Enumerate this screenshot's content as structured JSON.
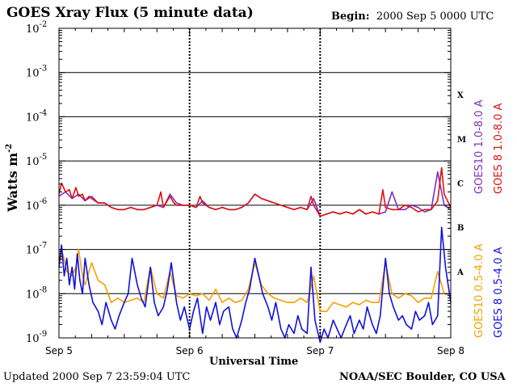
{
  "header": {
    "title": "GOES Xray Flux (5 minute data)",
    "begin_label": "Begin:",
    "begin_value": "2000 Sep 5 0000 UTC"
  },
  "footer": {
    "updated": "Updated 2000 Sep  7 23:59:04 UTC",
    "org": "NOAA/SEC Boulder, CO USA"
  },
  "chart_data": {
    "type": "line",
    "title": "GOES Xray Flux (5 minute data)",
    "xlabel": "Universal Time",
    "ylabel": "Watts m",
    "ylabel_sup": "-2",
    "yscale": "log",
    "ylim_exp": [
      -9,
      -2
    ],
    "y_ticks": [
      {
        "base": "10",
        "exp": "-2",
        "value": 0.01
      },
      {
        "base": "10",
        "exp": "-3",
        "value": 0.001
      },
      {
        "base": "10",
        "exp": "-4",
        "value": 0.0001
      },
      {
        "base": "10",
        "exp": "-5",
        "value": 1e-05
      },
      {
        "base": "10",
        "exp": "-6",
        "value": 1e-06
      },
      {
        "base": "10",
        "exp": "-7",
        "value": 1e-07
      },
      {
        "base": "10",
        "exp": "-8",
        "value": 1e-08
      },
      {
        "base": "10",
        "exp": "-9",
        "value": 1e-09
      }
    ],
    "xlim_days": [
      0,
      3
    ],
    "x_ticks": [
      {
        "label": "Sep 5",
        "day": 0
      },
      {
        "label": "Sep 6",
        "day": 1
      },
      {
        "label": "Sep 7",
        "day": 2
      },
      {
        "label": "Sep 8",
        "day": 3
      }
    ],
    "flare_classes": [
      {
        "label": "X",
        "exp": -3.5
      },
      {
        "label": "M",
        "exp": -4.5
      },
      {
        "label": "C",
        "exp": -5.5
      },
      {
        "label": "B",
        "exp": -6.5
      },
      {
        "label": "A",
        "exp": -7.5
      }
    ],
    "grid": true,
    "legend_position": "right",
    "colors": {
      "goes10_long": "#7b2fbf",
      "goes8_long": "#dd1111",
      "goes10_short": "#f5a000",
      "goes8_short": "#1111dd"
    },
    "series": [
      {
        "name": "GOES10 1.0-8.0 A",
        "color": "#7b2fbf",
        "x": [
          0,
          0.05,
          0.1,
          0.15,
          0.2,
          0.25,
          0.3,
          0.35,
          0.4,
          0.45,
          0.5,
          0.55,
          0.6,
          0.65,
          0.7,
          0.75,
          0.8,
          0.85,
          0.9,
          0.95,
          1.0,
          1.05,
          1.1,
          1.15,
          1.2,
          1.25,
          1.3,
          1.35,
          1.4,
          1.45,
          1.5,
          1.55,
          1.6,
          1.65,
          1.7,
          1.75,
          1.8,
          1.85,
          1.9,
          1.95,
          2.0,
          2.05,
          2.1,
          2.15,
          2.2,
          2.25,
          2.3,
          2.35,
          2.4,
          2.45,
          2.5,
          2.55,
          2.6,
          2.65,
          2.7,
          2.75,
          2.8,
          2.85,
          2.9,
          2.95,
          3.0
        ],
        "log_y": [
          -5.8,
          -5.7,
          -5.85,
          -5.75,
          -5.9,
          -5.8,
          -5.95,
          -5.95,
          -6.05,
          -6.1,
          -6.1,
          -6.05,
          -6.1,
          -6.1,
          -6.05,
          -6.0,
          -6.05,
          -5.75,
          -5.95,
          -6.0,
          -6.0,
          -6.05,
          -5.9,
          -6.05,
          -6.1,
          -6.05,
          -6.1,
          -6.1,
          -6.05,
          -5.95,
          -5.75,
          -5.85,
          -5.9,
          -5.95,
          -6.0,
          -6.05,
          -6.1,
          -6.05,
          -6.1,
          -5.85,
          -6.25,
          -6.2,
          -6.15,
          -6.2,
          -6.15,
          -6.2,
          -6.1,
          -6.2,
          -6.15,
          -6.2,
          -6.15,
          -5.7,
          -6.1,
          -6.1,
          -6.0,
          -6.05,
          -6.15,
          -6.1,
          -5.25,
          -6.0,
          -6.1
        ]
      },
      {
        "name": "GOES 8 1.0-8.0 A",
        "color": "#dd1111",
        "x": [
          0,
          0.02,
          0.05,
          0.08,
          0.1,
          0.13,
          0.15,
          0.18,
          0.2,
          0.23,
          0.25,
          0.3,
          0.35,
          0.4,
          0.45,
          0.5,
          0.55,
          0.6,
          0.65,
          0.7,
          0.75,
          0.78,
          0.8,
          0.85,
          0.88,
          0.9,
          0.95,
          1.0,
          1.05,
          1.08,
          1.1,
          1.15,
          1.2,
          1.25,
          1.3,
          1.35,
          1.4,
          1.45,
          1.5,
          1.55,
          1.6,
          1.65,
          1.7,
          1.75,
          1.8,
          1.85,
          1.9,
          1.93,
          1.95,
          2.0,
          2.05,
          2.1,
          2.15,
          2.2,
          2.25,
          2.3,
          2.35,
          2.4,
          2.45,
          2.48,
          2.5,
          2.55,
          2.6,
          2.65,
          2.7,
          2.75,
          2.8,
          2.85,
          2.9,
          2.93,
          2.95,
          3.0
        ],
        "log_y": [
          -5.75,
          -5.5,
          -5.7,
          -5.65,
          -5.85,
          -5.6,
          -5.8,
          -5.75,
          -5.9,
          -5.8,
          -5.85,
          -5.95,
          -5.95,
          -6.05,
          -6.1,
          -6.1,
          -6.05,
          -6.1,
          -6.1,
          -6.05,
          -6.0,
          -5.7,
          -6.05,
          -5.8,
          -5.95,
          -6.0,
          -6.0,
          -6.0,
          -6.05,
          -5.8,
          -5.95,
          -6.05,
          -6.1,
          -6.05,
          -6.1,
          -6.1,
          -6.05,
          -5.95,
          -5.75,
          -5.85,
          -5.9,
          -5.95,
          -6.0,
          -6.05,
          -6.1,
          -6.05,
          -6.1,
          -5.8,
          -6.0,
          -6.25,
          -6.2,
          -6.15,
          -6.2,
          -6.15,
          -6.2,
          -6.1,
          -6.2,
          -6.15,
          -6.2,
          -5.65,
          -6.05,
          -6.1,
          -6.1,
          -6.0,
          -6.05,
          -6.15,
          -6.1,
          -6.1,
          -5.9,
          -5.15,
          -5.75,
          -6.05
        ]
      },
      {
        "name": "GOES10 0.5-4.0 A",
        "color": "#f5a000",
        "x": [
          0,
          0.03,
          0.06,
          0.1,
          0.13,
          0.15,
          0.18,
          0.2,
          0.25,
          0.3,
          0.35,
          0.4,
          0.45,
          0.5,
          0.55,
          0.6,
          0.65,
          0.7,
          0.75,
          0.8,
          0.85,
          0.9,
          0.95,
          1.0,
          1.05,
          1.1,
          1.15,
          1.2,
          1.25,
          1.3,
          1.35,
          1.4,
          1.45,
          1.5,
          1.55,
          1.6,
          1.65,
          1.7,
          1.75,
          1.8,
          1.85,
          1.9,
          1.95,
          2.0,
          2.05,
          2.1,
          2.15,
          2.2,
          2.25,
          2.3,
          2.35,
          2.4,
          2.45,
          2.5,
          2.55,
          2.6,
          2.65,
          2.7,
          2.75,
          2.8,
          2.85,
          2.9,
          2.95,
          3.0
        ],
        "log_y": [
          -7.3,
          -7.1,
          -7.5,
          -7.6,
          -7.4,
          -7.0,
          -7.6,
          -7.8,
          -7.3,
          -7.7,
          -7.8,
          -8.2,
          -8.1,
          -8.2,
          -8.15,
          -8.1,
          -8.2,
          -7.4,
          -8.0,
          -8.1,
          -7.5,
          -8.05,
          -8.1,
          -8.0,
          -8.05,
          -8.0,
          -8.15,
          -7.9,
          -8.2,
          -8.1,
          -8.2,
          -8.15,
          -7.9,
          -7.3,
          -7.8,
          -8.0,
          -8.1,
          -8.15,
          -8.2,
          -8.2,
          -8.1,
          -8.2,
          -7.6,
          -8.4,
          -8.4,
          -8.2,
          -8.25,
          -8.3,
          -8.2,
          -8.25,
          -8.15,
          -8.2,
          -8.2,
          -7.3,
          -8.0,
          -8.1,
          -8.0,
          -8.05,
          -8.2,
          -8.1,
          -8.1,
          -7.5,
          -8.0,
          -8.05
        ]
      },
      {
        "name": "GOES 8 0.5-4.0 A",
        "color": "#1111dd",
        "x": [
          0,
          0.02,
          0.04,
          0.06,
          0.08,
          0.1,
          0.12,
          0.14,
          0.16,
          0.18,
          0.2,
          0.23,
          0.26,
          0.3,
          0.33,
          0.36,
          0.4,
          0.43,
          0.46,
          0.5,
          0.53,
          0.56,
          0.6,
          0.63,
          0.66,
          0.7,
          0.73,
          0.76,
          0.8,
          0.83,
          0.86,
          0.9,
          0.93,
          0.96,
          1.0,
          1.03,
          1.06,
          1.1,
          1.13,
          1.16,
          1.2,
          1.23,
          1.26,
          1.3,
          1.33,
          1.36,
          1.4,
          1.43,
          1.46,
          1.5,
          1.53,
          1.56,
          1.6,
          1.63,
          1.66,
          1.7,
          1.73,
          1.76,
          1.8,
          1.83,
          1.86,
          1.9,
          1.93,
          1.96,
          2.0,
          2.03,
          2.06,
          2.1,
          2.13,
          2.16,
          2.2,
          2.23,
          2.26,
          2.3,
          2.33,
          2.36,
          2.4,
          2.43,
          2.46,
          2.5,
          2.53,
          2.56,
          2.6,
          2.63,
          2.66,
          2.7,
          2.73,
          2.76,
          2.8,
          2.83,
          2.86,
          2.9,
          2.93,
          2.96,
          3.0
        ],
        "log_y": [
          -7.4,
          -6.9,
          -7.6,
          -7.2,
          -7.8,
          -7.4,
          -7.9,
          -7.1,
          -7.7,
          -8.0,
          -7.2,
          -7.8,
          -8.2,
          -8.4,
          -8.7,
          -8.2,
          -8.6,
          -8.8,
          -8.5,
          -8.2,
          -8.0,
          -7.2,
          -7.8,
          -8.1,
          -8.3,
          -7.4,
          -8.2,
          -8.5,
          -8.3,
          -7.9,
          -7.3,
          -8.2,
          -8.6,
          -8.3,
          -8.8,
          -8.4,
          -8.1,
          -8.9,
          -8.3,
          -8.6,
          -8.2,
          -8.7,
          -8.4,
          -8.3,
          -8.8,
          -9.0,
          -8.6,
          -8.2,
          -7.9,
          -7.2,
          -7.6,
          -8.0,
          -8.3,
          -8.6,
          -8.2,
          -8.8,
          -9.0,
          -8.7,
          -8.9,
          -8.5,
          -8.8,
          -8.9,
          -7.4,
          -8.6,
          -9.1,
          -8.8,
          -9.0,
          -8.6,
          -8.8,
          -9.0,
          -8.7,
          -8.5,
          -8.9,
          -8.6,
          -8.8,
          -8.3,
          -8.7,
          -8.9,
          -8.5,
          -7.2,
          -8.0,
          -8.3,
          -8.6,
          -8.5,
          -8.7,
          -8.8,
          -8.4,
          -8.6,
          -8.5,
          -8.2,
          -8.7,
          -8.5,
          -6.5,
          -7.4,
          -8.2
        ]
      }
    ]
  }
}
